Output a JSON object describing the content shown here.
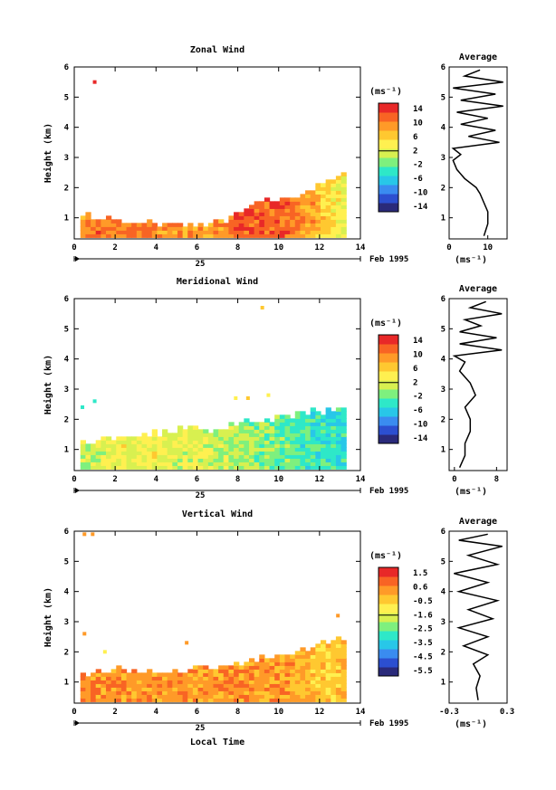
{
  "chart_data": [
    {
      "type": "heatmap",
      "title": "Zonal Wind",
      "ylabel": "Height (km)",
      "xlim": [
        0,
        14
      ],
      "ylim": [
        0.3,
        6
      ],
      "x_ticks": [
        "0",
        "2",
        "4",
        "6",
        "8",
        "10",
        "12",
        "14"
      ],
      "y_ticks": [
        "1",
        "2",
        "3",
        "4",
        "5",
        "6"
      ],
      "date_label": "Feb 1995",
      "date_marker": "25",
      "colorbar": {
        "unit_label": "(ms⁻¹)",
        "ticks": [
          "14",
          "10",
          "6",
          "2",
          "-2",
          "-6",
          "-10",
          "-14"
        ],
        "range": [
          -16,
          16
        ]
      },
      "data": {
        "cols": [
          0.4,
          1.0,
          2.0,
          3.0,
          4.0,
          5.0,
          6.0,
          7.0,
          8.0,
          9.0,
          10.0,
          11.0,
          12.0,
          12.7,
          13.0
        ],
        "top_km": [
          1.0,
          1.0,
          0.85,
          0.8,
          0.75,
          0.7,
          0.75,
          0.85,
          1.1,
          1.5,
          1.6,
          1.8,
          2.1,
          2.3,
          2.4
        ],
        "mean_ms": [
          10,
          11,
          11,
          11,
          10,
          10,
          10,
          10,
          12,
          13,
          12,
          10,
          7,
          4,
          3
        ],
        "speckle": [
          {
            "t": 1.0,
            "h": 5.5,
            "v": 14
          }
        ]
      },
      "profile": {
        "title": "Average",
        "xlabel": "(ms⁻¹)",
        "xlim": [
          0,
          15
        ],
        "x_ticks": [
          "0",
          "10"
        ],
        "y_ticks": [
          "1",
          "2",
          "3",
          "4",
          "5",
          "6"
        ],
        "heights_km": [
          0.4,
          0.8,
          1.2,
          1.5,
          1.8,
          2.0,
          2.3,
          2.6,
          2.9,
          3.1,
          3.3,
          3.5,
          3.7,
          3.9,
          4.1,
          4.3,
          4.5,
          4.7,
          4.9,
          5.1,
          5.3,
          5.5,
          5.7,
          5.9
        ],
        "values": [
          9,
          10,
          10,
          9,
          8,
          7,
          4,
          2,
          1,
          3,
          1,
          13,
          5,
          12,
          3,
          10,
          2,
          14,
          3,
          12,
          1,
          14,
          4,
          8
        ]
      }
    },
    {
      "type": "heatmap",
      "title": "Meridional Wind",
      "ylabel": "Height (km)",
      "xlim": [
        0,
        14
      ],
      "ylim": [
        0.3,
        6
      ],
      "x_ticks": [
        "0",
        "2",
        "4",
        "6",
        "8",
        "10",
        "12",
        "14"
      ],
      "y_ticks": [
        "1",
        "2",
        "3",
        "4",
        "5",
        "6"
      ],
      "date_label": "Feb 1995",
      "date_marker": "25",
      "colorbar": {
        "unit_label": "(ms⁻¹)",
        "ticks": [
          "14",
          "10",
          "6",
          "2",
          "-2",
          "-6",
          "-10",
          "-14"
        ],
        "range": [
          -16,
          16
        ]
      },
      "data": {
        "cols": [
          0.4,
          1.0,
          2.0,
          3.0,
          4.0,
          5.0,
          6.0,
          7.0,
          8.0,
          9.0,
          10.0,
          11.0,
          12.0,
          12.7,
          13.0
        ],
        "top_km": [
          1.2,
          1.3,
          1.3,
          1.4,
          1.5,
          1.6,
          1.7,
          1.6,
          1.8,
          1.9,
          2.0,
          2.1,
          2.2,
          2.3,
          2.4
        ],
        "mean_ms": [
          1,
          2,
          3,
          3,
          3,
          2,
          2,
          1,
          0,
          -1,
          -2,
          -3,
          -4,
          -5,
          -4
        ],
        "speckle": [
          {
            "t": 0.4,
            "h": 2.4,
            "v": -4
          },
          {
            "t": 1.0,
            "h": 2.6,
            "v": -3
          },
          {
            "t": 7.9,
            "h": 2.7,
            "v": 5
          },
          {
            "t": 8.5,
            "h": 2.7,
            "v": 6
          },
          {
            "t": 9.5,
            "h": 2.8,
            "v": 5
          },
          {
            "t": 9.2,
            "h": 5.7,
            "v": 6
          }
        ]
      },
      "profile": {
        "title": "Average",
        "xlabel": "(ms⁻¹)",
        "xlim": [
          -1,
          10
        ],
        "x_ticks": [
          "0",
          "8"
        ],
        "y_ticks": [
          "1",
          "2",
          "3",
          "4",
          "5",
          "6"
        ],
        "heights_km": [
          0.4,
          0.8,
          1.2,
          1.6,
          2.0,
          2.4,
          2.8,
          3.2,
          3.6,
          3.9,
          4.1,
          4.3,
          4.5,
          4.7,
          4.9,
          5.1,
          5.3,
          5.5,
          5.7,
          5.9
        ],
        "values": [
          1,
          2,
          2,
          3,
          3,
          2,
          4,
          3,
          1,
          2,
          0,
          9,
          1,
          8,
          1,
          5,
          2,
          9,
          3,
          6
        ]
      }
    },
    {
      "type": "heatmap",
      "title": "Vertical Wind",
      "ylabel": "Height (km)",
      "xlabel": "Local Time",
      "xlim": [
        0,
        14
      ],
      "ylim": [
        0.3,
        6
      ],
      "x_ticks": [
        "0",
        "2",
        "4",
        "6",
        "8",
        "10",
        "12",
        "14"
      ],
      "y_ticks": [
        "1",
        "2",
        "3",
        "4",
        "5",
        "6"
      ],
      "date_label": "Feb 1995",
      "date_marker": "25",
      "colorbar": {
        "unit_label": "(ms⁻¹)",
        "ticks": [
          "1.5",
          "0.6",
          "-0.5",
          "-1.6",
          "-2.5",
          "-3.5",
          "-4.5",
          "-5.5"
        ],
        "range": [
          -6,
          2
        ]
      },
      "data": {
        "cols": [
          0.4,
          1.0,
          2.0,
          3.0,
          4.0,
          5.0,
          6.0,
          7.0,
          8.0,
          9.0,
          10.0,
          11.0,
          12.0,
          12.7,
          13.0
        ],
        "top_km": [
          1.2,
          1.3,
          1.4,
          1.3,
          1.3,
          1.3,
          1.4,
          1.4,
          1.6,
          1.7,
          1.8,
          2.0,
          2.2,
          2.4,
          2.4
        ],
        "mean_ms": [
          0.6,
          0.5,
          0.5,
          0.4,
          0.4,
          0.5,
          0.4,
          0.5,
          0.4,
          0.3,
          0.2,
          0.0,
          -0.3,
          -0.5,
          0.0
        ],
        "speckle": [
          {
            "t": 0.5,
            "h": 5.9,
            "v": 0.2
          },
          {
            "t": 0.9,
            "h": 5.9,
            "v": 0.2
          },
          {
            "t": 0.5,
            "h": 2.6,
            "v": 0.5
          },
          {
            "t": 1.5,
            "h": 2.0,
            "v": -0.8
          },
          {
            "t": 5.5,
            "h": 2.3,
            "v": 0.5
          },
          {
            "t": 12.9,
            "h": 3.2,
            "v": 0.4
          }
        ]
      },
      "profile": {
        "title": "Average",
        "xlabel": "(ms⁻¹)",
        "xlim": [
          -0.3,
          0.3
        ],
        "x_ticks": [
          "-0.3",
          "0.3"
        ],
        "y_ticks": [
          "1",
          "2",
          "3",
          "4",
          "5",
          "6"
        ],
        "heights_km": [
          0.4,
          0.8,
          1.2,
          1.6,
          1.9,
          2.2,
          2.5,
          2.8,
          3.1,
          3.4,
          3.7,
          4.0,
          4.3,
          4.6,
          4.9,
          5.2,
          5.5,
          5.7,
          5.9
        ],
        "values": [
          0.0,
          -0.02,
          0.02,
          -0.05,
          0.1,
          -0.15,
          0.1,
          -0.2,
          0.15,
          -0.1,
          0.2,
          -0.2,
          0.1,
          -0.25,
          0.2,
          -0.1,
          0.25,
          -0.2,
          0.1
        ]
      }
    }
  ]
}
